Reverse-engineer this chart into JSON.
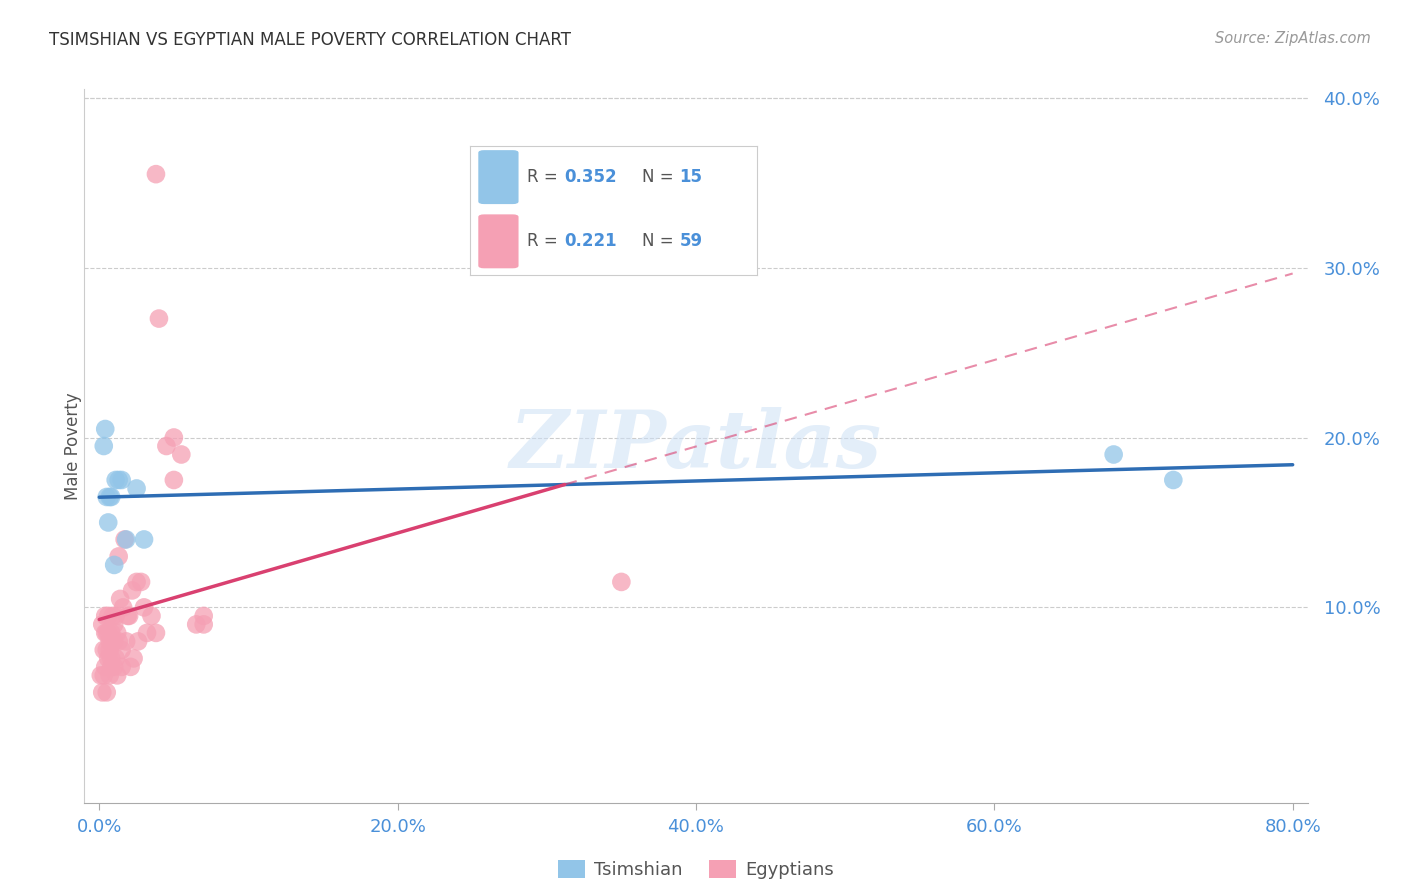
{
  "title": "TSIMSHIAN VS EGYPTIAN MALE POVERTY CORRELATION CHART",
  "source": "Source: ZipAtlas.com",
  "ylabel_label": "Male Poverty",
  "watermark": "ZIPatlas",
  "legend_tsimshian": "Tsimshian",
  "legend_egyptians": "Egyptians",
  "R_tsimshian": 0.352,
  "N_tsimshian": 15,
  "R_egyptians": 0.221,
  "N_egyptians": 59,
  "xlim_data": [
    0.0,
    0.8
  ],
  "ylim_data": [
    0.0,
    0.4
  ],
  "xtick_positions": [
    0.0,
    0.2,
    0.4,
    0.6,
    0.8
  ],
  "ytick_positions": [
    0.1,
    0.2,
    0.3,
    0.4
  ],
  "tsimshian_x": [
    0.003,
    0.004,
    0.005,
    0.006,
    0.007,
    0.008,
    0.01,
    0.011,
    0.013,
    0.015,
    0.018,
    0.025,
    0.03,
    0.68,
    0.72
  ],
  "tsimshian_y": [
    0.195,
    0.205,
    0.165,
    0.15,
    0.165,
    0.165,
    0.125,
    0.175,
    0.175,
    0.175,
    0.14,
    0.17,
    0.14,
    0.19,
    0.175
  ],
  "egyptians_x": [
    0.001,
    0.002,
    0.002,
    0.003,
    0.003,
    0.004,
    0.004,
    0.004,
    0.005,
    0.005,
    0.005,
    0.006,
    0.006,
    0.006,
    0.007,
    0.007,
    0.007,
    0.008,
    0.008,
    0.008,
    0.009,
    0.009,
    0.01,
    0.01,
    0.01,
    0.011,
    0.011,
    0.012,
    0.012,
    0.013,
    0.013,
    0.014,
    0.015,
    0.015,
    0.016,
    0.017,
    0.018,
    0.019,
    0.02,
    0.021,
    0.022,
    0.023,
    0.025,
    0.026,
    0.028,
    0.03,
    0.032,
    0.035,
    0.038,
    0.04,
    0.045,
    0.05,
    0.055,
    0.065,
    0.07,
    0.35,
    0.038,
    0.05,
    0.07
  ],
  "egyptians_y": [
    0.06,
    0.05,
    0.09,
    0.075,
    0.06,
    0.085,
    0.065,
    0.095,
    0.075,
    0.085,
    0.05,
    0.07,
    0.085,
    0.095,
    0.06,
    0.075,
    0.08,
    0.065,
    0.085,
    0.07,
    0.08,
    0.095,
    0.065,
    0.09,
    0.08,
    0.095,
    0.07,
    0.085,
    0.06,
    0.08,
    0.13,
    0.105,
    0.075,
    0.065,
    0.1,
    0.14,
    0.08,
    0.095,
    0.095,
    0.065,
    0.11,
    0.07,
    0.115,
    0.08,
    0.115,
    0.1,
    0.085,
    0.095,
    0.355,
    0.27,
    0.195,
    0.2,
    0.19,
    0.09,
    0.095,
    0.115,
    0.085,
    0.175,
    0.09
  ],
  "tsimshian_color": "#92C5E8",
  "egyptians_color": "#F5A0B4",
  "tsimshian_line_color": "#2E6DB4",
  "egyptians_line_color": "#D94070",
  "background_color": "#ffffff",
  "grid_color": "#cccccc",
  "tick_label_color": "#4A90D9",
  "title_color": "#333333",
  "source_color": "#999999",
  "legend_border_color": "#cccccc",
  "legend_text_color": "#333333",
  "legend_r_color": "#4A90D9",
  "legend_n_color": "#4A90D9"
}
